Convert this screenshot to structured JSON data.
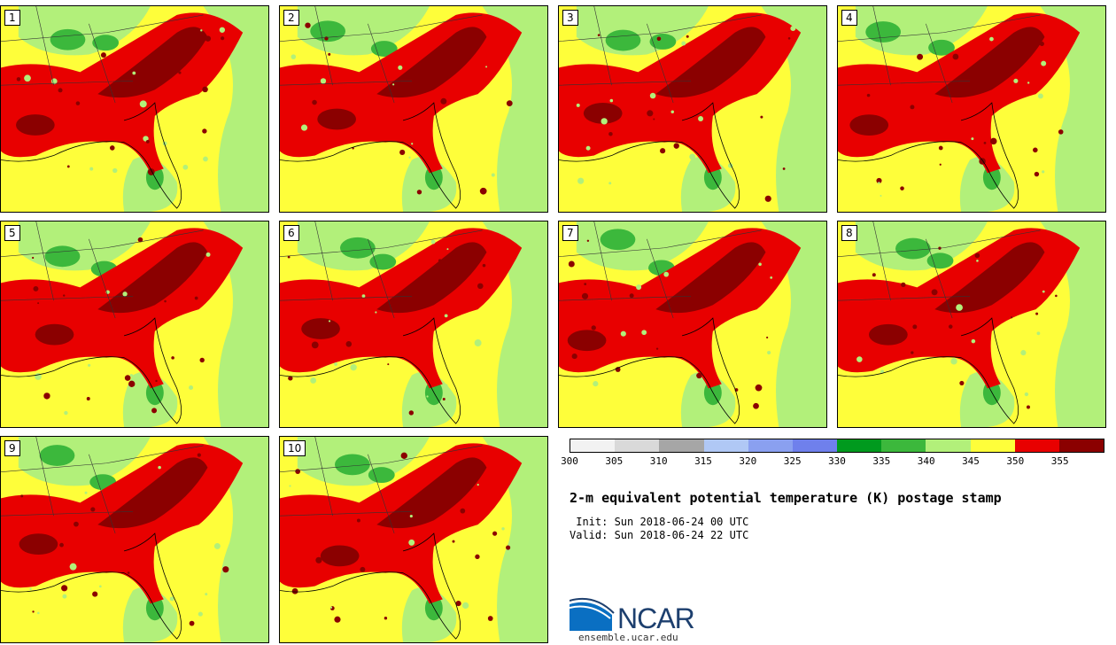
{
  "panels": [
    {
      "label": "1"
    },
    {
      "label": "2"
    },
    {
      "label": "3"
    },
    {
      "label": "4"
    },
    {
      "label": "5"
    },
    {
      "label": "6"
    },
    {
      "label": "7"
    },
    {
      "label": "8"
    },
    {
      "label": "9"
    },
    {
      "label": "10"
    }
  ],
  "colorbar": {
    "colors": [
      "#f2f2f2",
      "#d9d9d9",
      "#a6a6a6",
      "#b0c8f5",
      "#8aa0f0",
      "#6f80ec",
      "#009a1e",
      "#3cb83c",
      "#b2f07a",
      "#fefe3a",
      "#e80000",
      "#8b0000"
    ],
    "ticks": [
      "300",
      "305",
      "310",
      "315",
      "320",
      "325",
      "330",
      "335",
      "340",
      "345",
      "350",
      "355"
    ]
  },
  "title": "2-m equivalent potential temperature (K) postage stamp",
  "init": " Init: Sun 2018-06-24 00 UTC",
  "valid": "Valid: Sun 2018-06-24 22 UTC",
  "logo_text": "NCAR",
  "site": "ensemble.ucar.edu"
}
